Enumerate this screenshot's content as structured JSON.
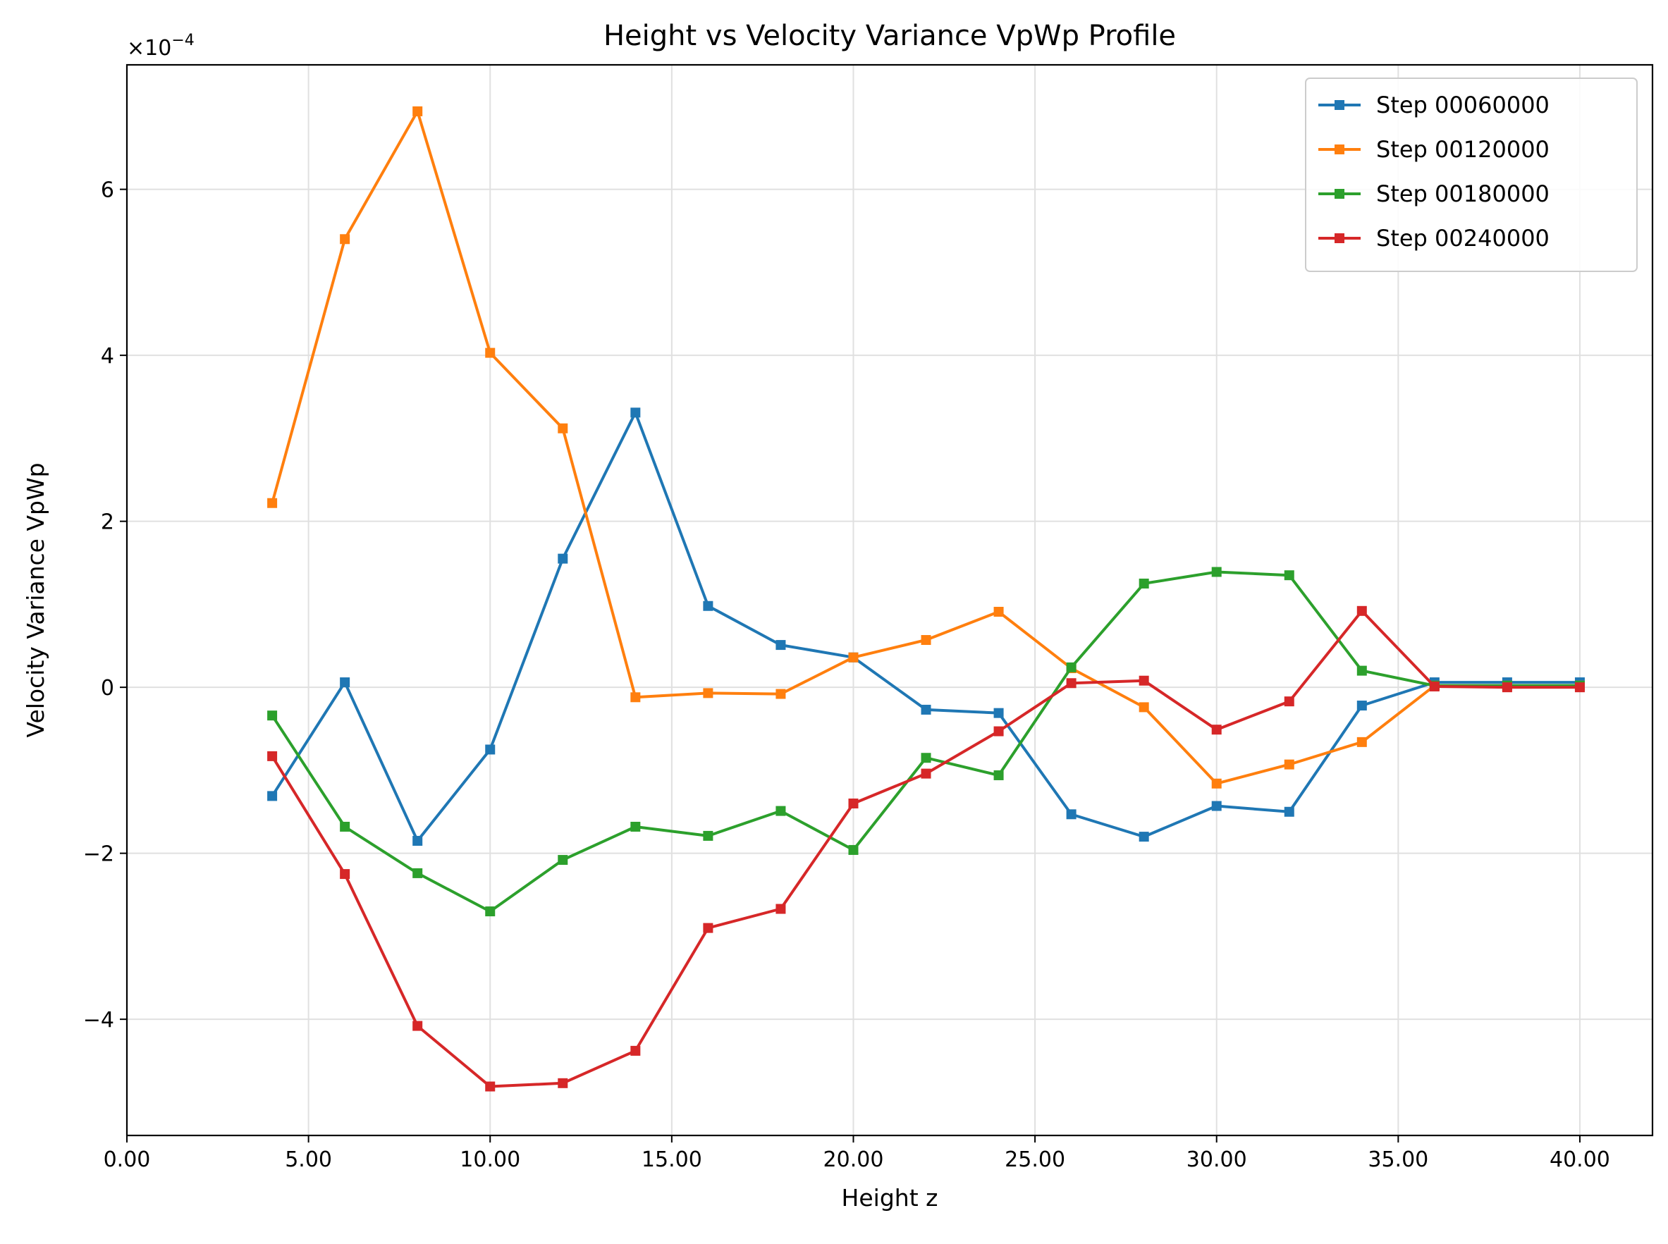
{
  "chart_data": {
    "type": "line",
    "title": "Height vs Velocity Variance VpWp Profile",
    "xlabel": "Height z",
    "ylabel": "Velocity Variance VpWp",
    "y_scale_factor_label": "×10",
    "y_scale_factor_exponent": "−4",
    "xlim": [
      0,
      42
    ],
    "ylim": [
      -0.00054,
      0.00075
    ],
    "x_ticks": [
      0,
      5,
      10,
      15,
      20,
      25,
      30,
      35,
      40
    ],
    "x_tick_labels": [
      "0.00",
      "5.00",
      "10.00",
      "15.00",
      "20.00",
      "25.00",
      "30.00",
      "35.00",
      "40.00"
    ],
    "y_ticks": [
      -0.0004,
      -0.0002,
      0,
      0.0002,
      0.0004,
      0.0006
    ],
    "y_tick_labels": [
      "−4",
      "−2",
      "0",
      "2",
      "4",
      "6"
    ],
    "grid": true,
    "legend_position": "top-right",
    "marker": "square",
    "x": [
      4,
      6,
      8,
      10,
      12,
      14,
      16,
      18,
      20,
      22,
      24,
      26,
      28,
      30,
      32,
      34,
      36,
      38,
      40
    ],
    "series": [
      {
        "name": "Step 00060000",
        "color": "#1f77b4",
        "values": [
          -0.000131,
          6e-06,
          -0.000185,
          -7.5e-05,
          0.000155,
          0.000331,
          9.8e-05,
          5.1e-05,
          3.6e-05,
          -2.7e-05,
          -3.1e-05,
          -0.000153,
          -0.00018,
          -0.000143,
          -0.00015,
          -2.2e-05,
          6e-06,
          6e-06,
          6e-06
        ]
      },
      {
        "name": "Step 00120000",
        "color": "#ff7f0e",
        "values": [
          0.000222,
          0.00054,
          0.000694,
          0.000403,
          0.000312,
          -1.2e-05,
          -7e-06,
          -8e-06,
          3.6e-05,
          5.7e-05,
          9.1e-05,
          2.3e-05,
          -2.4e-05,
          -0.000116,
          -9.3e-05,
          -6.6e-05,
          2e-06,
          2e-06,
          2e-06
        ]
      },
      {
        "name": "Step 00180000",
        "color": "#2ca02c",
        "values": [
          -3.4e-05,
          -0.000168,
          -0.000224,
          -0.00027,
          -0.000208,
          -0.000168,
          -0.000179,
          -0.000149,
          -0.000196,
          -8.5e-05,
          -0.000106,
          2.4e-05,
          0.000125,
          0.000139,
          0.000135,
          2e-05,
          2e-06,
          2e-06,
          2e-06
        ]
      },
      {
        "name": "Step 00240000",
        "color": "#d62728",
        "values": [
          -8.3e-05,
          -0.000225,
          -0.000408,
          -0.000481,
          -0.000477,
          -0.000438,
          -0.00029,
          -0.000267,
          -0.00014,
          -0.000104,
          -5.3e-05,
          5e-06,
          8e-06,
          -5.1e-05,
          -1.7e-05,
          9.2e-05,
          1e-06,
          0.0,
          0.0
        ]
      }
    ]
  }
}
